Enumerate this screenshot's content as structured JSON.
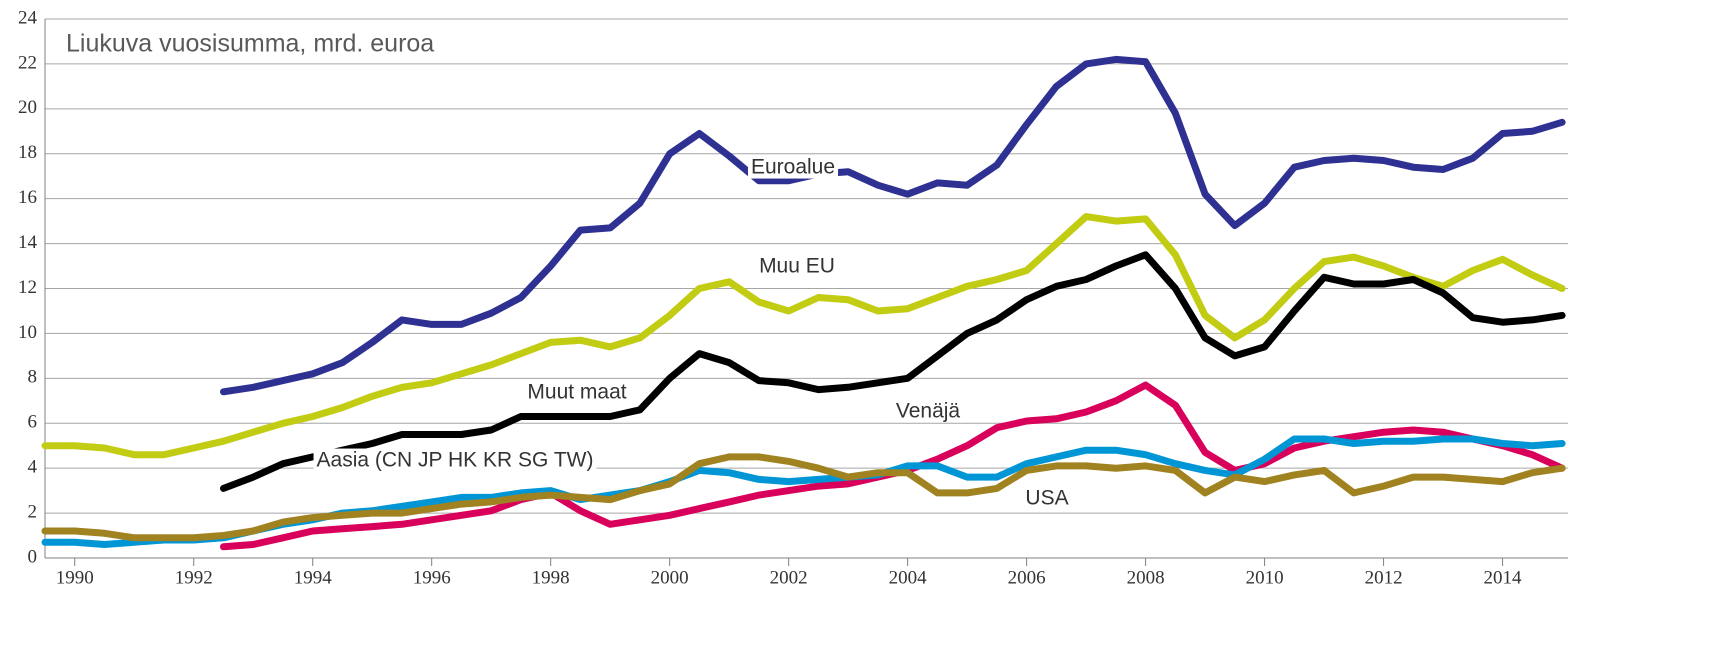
{
  "chart_data": {
    "type": "line",
    "title": "Liukuva vuosisumma, mrd. euroa",
    "x": [
      1989.5,
      1990,
      1990.5,
      1991,
      1991.5,
      1992,
      1992.5,
      1993,
      1993.5,
      1994,
      1994.5,
      1995,
      1995.5,
      1996,
      1996.5,
      1997,
      1997.5,
      1998,
      1998.5,
      1999,
      1999.5,
      2000,
      2000.5,
      2001,
      2001.5,
      2002,
      2002.5,
      2003,
      2003.5,
      2004,
      2004.5,
      2005,
      2005.5,
      2006,
      2006.5,
      2007,
      2007.5,
      2008,
      2008.5,
      2009,
      2009.5,
      2010,
      2010.5,
      2011,
      2011.5,
      2012,
      2012.5,
      2013,
      2013.5,
      2014,
      2014.5,
      2015
    ],
    "series": [
      {
        "name": "Euroalue",
        "color": "#2e3192",
        "values": [
          null,
          null,
          null,
          null,
          null,
          null,
          7.4,
          7.6,
          7.9,
          8.2,
          8.7,
          9.6,
          10.6,
          10.4,
          10.4,
          10.9,
          11.6,
          13.0,
          14.6,
          14.7,
          15.8,
          18.0,
          18.9,
          17.9,
          16.8,
          16.8,
          17.1,
          17.2,
          16.6,
          16.2,
          16.7,
          16.6,
          17.5,
          19.3,
          21.0,
          22.0,
          22.2,
          22.1,
          19.8,
          16.2,
          14.8,
          15.8,
          17.4,
          17.7,
          17.8,
          17.7,
          17.4,
          17.3,
          17.8,
          18.9,
          19.0,
          19.4
        ]
      },
      {
        "name": "Muu EU",
        "color": "#c2cc12",
        "values": [
          5.0,
          5.0,
          4.9,
          4.6,
          4.6,
          4.9,
          5.2,
          5.6,
          6.0,
          6.3,
          6.7,
          7.2,
          7.6,
          7.8,
          8.2,
          8.6,
          9.1,
          9.6,
          9.7,
          9.4,
          9.8,
          10.8,
          12.0,
          12.3,
          11.4,
          11.0,
          11.6,
          11.5,
          11.0,
          11.1,
          11.6,
          12.1,
          12.4,
          12.8,
          14.0,
          15.2,
          15.0,
          15.1,
          13.5,
          10.8,
          9.8,
          10.6,
          12.0,
          13.2,
          13.4,
          13.0,
          12.5,
          12.1,
          12.8,
          13.3,
          12.6,
          12.0
        ]
      },
      {
        "name": "Muut maat",
        "color": "#000000",
        "values": [
          null,
          null,
          null,
          null,
          null,
          null,
          3.1,
          3.6,
          4.2,
          4.5,
          4.8,
          5.1,
          5.5,
          5.5,
          5.5,
          5.7,
          6.3,
          6.3,
          6.3,
          6.3,
          6.6,
          8.0,
          9.1,
          8.7,
          7.9,
          7.8,
          7.5,
          7.6,
          7.8,
          8.0,
          9.0,
          10.0,
          10.6,
          11.5,
          12.1,
          12.4,
          13.0,
          13.5,
          12.0,
          9.8,
          9.0,
          9.4,
          11.0,
          12.5,
          12.2,
          12.2,
          12.4,
          11.8,
          10.7,
          10.5,
          10.6,
          10.8
        ]
      },
      {
        "name": "Venäjä",
        "color": "#d9005b",
        "values": [
          null,
          null,
          null,
          null,
          null,
          null,
          0.5,
          0.6,
          0.9,
          1.2,
          1.3,
          1.4,
          1.5,
          1.7,
          1.9,
          2.1,
          2.6,
          2.9,
          2.1,
          1.5,
          1.7,
          1.9,
          2.2,
          2.5,
          2.8,
          3.0,
          3.2,
          3.3,
          3.6,
          3.9,
          4.4,
          5.0,
          5.8,
          6.1,
          6.2,
          6.5,
          7.0,
          7.7,
          6.8,
          4.7,
          3.9,
          4.2,
          4.9,
          5.2,
          5.4,
          5.6,
          5.7,
          5.6,
          5.3,
          5.0,
          4.6,
          4.0
        ]
      },
      {
        "name": "Aasia (CN JP HK KR SG TW)",
        "color": "#0096d6",
        "values": [
          0.7,
          0.7,
          0.6,
          0.7,
          0.8,
          0.8,
          0.9,
          1.2,
          1.5,
          1.7,
          2.0,
          2.1,
          2.3,
          2.5,
          2.7,
          2.7,
          2.9,
          3.0,
          2.6,
          2.8,
          3.0,
          3.4,
          3.9,
          3.8,
          3.5,
          3.4,
          3.5,
          3.6,
          3.7,
          4.1,
          4.1,
          3.6,
          3.6,
          4.2,
          4.5,
          4.8,
          4.8,
          4.6,
          4.2,
          3.9,
          3.7,
          4.4,
          5.3,
          5.3,
          5.1,
          5.2,
          5.2,
          5.3,
          5.3,
          5.1,
          5.0,
          5.1
        ]
      },
      {
        "name": "USA",
        "color": "#a08221",
        "values": [
          1.2,
          1.2,
          1.1,
          0.9,
          0.9,
          0.9,
          1.0,
          1.2,
          1.6,
          1.8,
          1.9,
          2.0,
          2.0,
          2.2,
          2.4,
          2.5,
          2.7,
          2.8,
          2.7,
          2.6,
          3.0,
          3.3,
          4.2,
          4.5,
          4.5,
          4.3,
          4.0,
          3.6,
          3.8,
          3.8,
          2.9,
          2.9,
          3.1,
          3.9,
          4.1,
          4.1,
          4.0,
          4.1,
          3.9,
          2.9,
          3.6,
          3.4,
          3.7,
          3.9,
          2.9,
          3.2,
          3.6,
          3.6,
          3.5,
          3.4,
          3.8,
          4.0
        ]
      }
    ],
    "xlim": [
      1989.5,
      2015.1
    ],
    "xticks": [
      1990,
      1992,
      1994,
      1996,
      1998,
      2000,
      2002,
      2004,
      2006,
      2008,
      2010,
      2012,
      2014
    ],
    "ylim": [
      0,
      24
    ],
    "yticks": [
      0,
      2,
      4,
      6,
      8,
      10,
      12,
      14,
      16,
      18,
      20,
      22,
      24
    ],
    "grid": true
  }
}
